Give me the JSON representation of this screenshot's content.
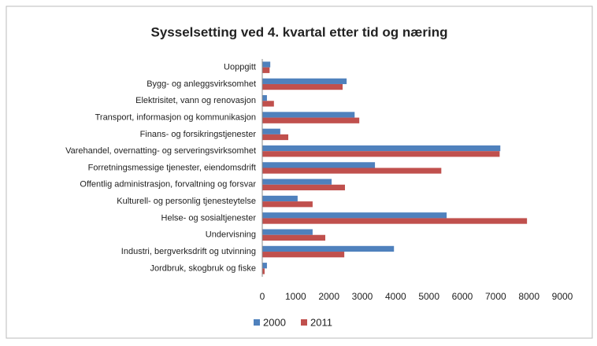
{
  "chart_data": {
    "type": "bar",
    "orientation": "horizontal",
    "title": "Sysselsetting ved 4. kvartal etter tid og næring",
    "categories": [
      "Uoppgitt",
      "Bygg- og anleggsvirksomhet",
      "Elektrisitet, vann og renovasjon",
      "Transport, informasjon og kommunikasjon",
      "Finans- og forsikringstjenester",
      "Varehandel, overnatting- og serveringsvirksomhet",
      "Forretningsmessige tjenester, eiendomsdrift",
      "Offentlig administrasjon, forvaltning og forsvar",
      "Kulturell- og personlig tjenesteytelse",
      "Helse- og sosialtjenester",
      "Undervisning",
      "Industri, bergverksdrift og utvinning",
      "Jordbruk, skogbruk og fiske"
    ],
    "series": [
      {
        "name": "2000",
        "color": "#4f81bd",
        "values": [
          240,
          2530,
          140,
          2770,
          540,
          7140,
          3380,
          2080,
          1060,
          5530,
          1510,
          3950,
          140
        ]
      },
      {
        "name": "2011",
        "color": "#c0504d",
        "values": [
          220,
          2410,
          350,
          2910,
          780,
          7120,
          5370,
          2480,
          1510,
          7940,
          1890,
          2460,
          70
        ]
      }
    ],
    "xlim": [
      0,
      9000
    ],
    "xticks": [
      0,
      1000,
      2000,
      3000,
      4000,
      5000,
      6000,
      7000,
      8000,
      9000
    ],
    "grid": false,
    "legend": "bottom"
  }
}
